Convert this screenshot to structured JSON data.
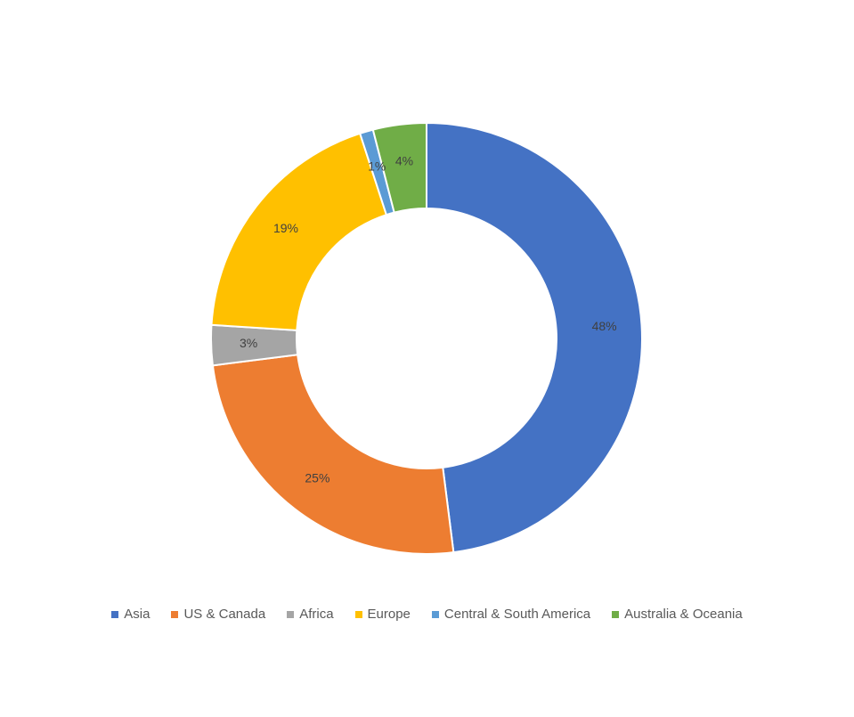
{
  "chart_data": {
    "type": "pie",
    "variant": "donut",
    "title": "",
    "categories": [
      "Asia",
      "US & Canada",
      "Africa",
      "Europe",
      "Central & South America",
      "Australia & Oceania"
    ],
    "values": [
      48,
      25,
      3,
      19,
      1,
      4
    ],
    "value_labels": [
      "48%",
      "25%",
      "3%",
      "19%",
      "1%",
      "4%"
    ],
    "colors": [
      "#4472C4",
      "#ED7D31",
      "#A5A5A5",
      "#FFC000",
      "#5B9BD5",
      "#70AD47"
    ],
    "start_angle": "12 o'clock",
    "direction": "clockwise",
    "legend_position": "bottom"
  }
}
